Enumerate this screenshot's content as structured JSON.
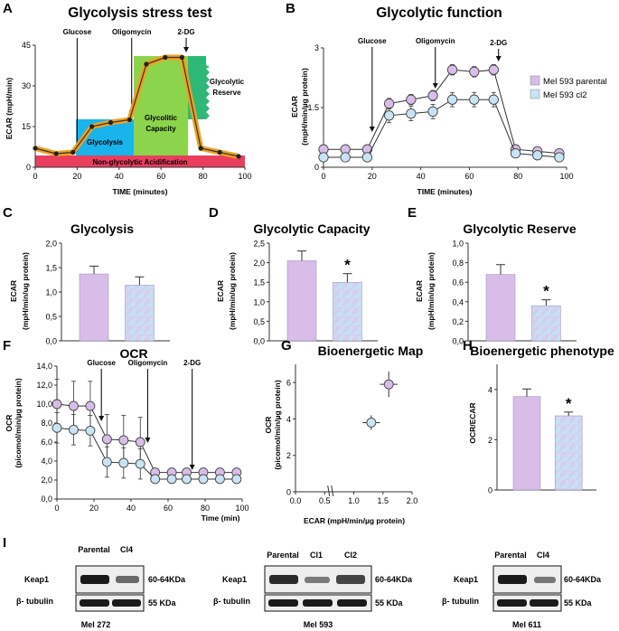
{
  "colors": {
    "parental": "#d8bde8",
    "cl2": "#c8e4f4",
    "parental_stroke": "#555555",
    "orange": "#f0a020",
    "cyan": "#19b4ec",
    "green": "#8cd44c",
    "dark_green": "#2db878",
    "red": "#ea3e5e"
  },
  "panels": {
    "A": {
      "label": "A",
      "title": "Glycolysis stress test",
      "ylabel": "ECAR (mpH/min)",
      "xlabel": "TIME (minutes)",
      "injections": [
        "Glucose",
        "Oligomycin",
        "2-DG"
      ],
      "regions": {
        "glycolysis": "Glycolysis",
        "capacity": "Glycolitic Capacity",
        "reserve": "Glycolytic Reserve",
        "non_glycolytic": "Non-glycolytic Acidification"
      }
    },
    "B": {
      "label": "B",
      "title": "Glycolytic function",
      "ylabel_line1": "ECAR",
      "ylabel_line2": "(mpH/min/µg protein)",
      "xlabel": "TIME (minutes)",
      "injections": [
        "Glucose",
        "Oligomycin",
        "2-DG"
      ],
      "legend": [
        "Mel 593 parental",
        "Mel 593 cl2"
      ]
    },
    "C": {
      "label": "C",
      "title": "Glycolysis",
      "ylabel_line1": "ECAR",
      "ylabel_line2": "(mpH/min/ug protein)"
    },
    "D": {
      "label": "D",
      "title": "Glycolytic Capacity",
      "ylabel_line1": "ECAR",
      "ylabel_line2": "(mpH/min/ug protein)",
      "significance": "*"
    },
    "E": {
      "label": "E",
      "title": "Glycolytic Reserve",
      "ylabel_line1": "ECAR",
      "ylabel_line2": "(mpH/min/ug protein)",
      "significance": "*"
    },
    "F": {
      "label": "F",
      "title": "OCR",
      "ylabel_line1": "OCR",
      "ylabel_line2": "(picomol/min/µg protein)",
      "xlabel": "Time (min)",
      "injections": [
        "Glucose",
        "Oligomycin",
        "2-DG"
      ]
    },
    "G": {
      "label": "G",
      "title": "Bioenergetic Map",
      "ylabel_line1": "OCR",
      "ylabel_line2": "(picomol/min/µg protein)",
      "xlabel": "ECAR (mpH/min/µg protein)"
    },
    "H": {
      "label": "H",
      "title": "Bioenergetic phenotype",
      "ylabel": "OCR/ECAR",
      "significance": "*"
    },
    "I": {
      "label": "I",
      "row_labels": [
        "Keap1",
        "β- tubulin"
      ],
      "size_labels": [
        "60-64KDa",
        "55 KDa"
      ],
      "blots": [
        {
          "cell_line": "Mel 272",
          "lanes": [
            "Parental",
            "Cl4"
          ]
        },
        {
          "cell_line": "Mel 593",
          "lanes": [
            "Parental",
            "Cl1",
            "Cl2"
          ]
        },
        {
          "cell_line": "Mel 611",
          "lanes": [
            "Parental",
            "Cl4"
          ]
        }
      ]
    }
  },
  "chart_data": [
    {
      "id": "A",
      "type": "line",
      "title": "Glycolysis stress test",
      "xlabel": "TIME (minutes)",
      "ylabel": "ECAR (mpH/min)",
      "xlim": [
        0,
        100
      ],
      "ylim": [
        0,
        45
      ],
      "xticks": [
        0,
        20,
        40,
        60,
        80,
        100
      ],
      "yticks": [
        0,
        15,
        30,
        45
      ],
      "x": [
        0,
        10,
        18,
        27,
        36,
        45,
        53,
        62,
        70,
        79,
        88,
        97
      ],
      "series": [
        {
          "name": "ECAR",
          "values": [
            7,
            5,
            5.5,
            15,
            16.5,
            17.5,
            38,
            40.5,
            40.5,
            7,
            5.5,
            4
          ]
        }
      ],
      "injection_times": [
        20,
        46,
        72
      ]
    },
    {
      "id": "B",
      "type": "line",
      "title": "Glycolytic function",
      "xlabel": "TIME (minutes)",
      "ylabel": "ECAR (mpH/min/µg protein)",
      "xlim": [
        0,
        100
      ],
      "ylim": [
        0,
        3.0
      ],
      "xticks": [
        0,
        20,
        40,
        60,
        80,
        100
      ],
      "yticks": [
        0,
        1.5,
        3.0
      ],
      "x": [
        0,
        9,
        18,
        27,
        36,
        45,
        53,
        62,
        70,
        79,
        88,
        97
      ],
      "series": [
        {
          "name": "Mel 593 parental",
          "values": [
            0.45,
            0.45,
            0.45,
            1.6,
            1.7,
            1.8,
            2.45,
            2.4,
            2.45,
            0.45,
            0.4,
            0.35
          ]
        },
        {
          "name": "Mel 593 cl2",
          "values": [
            0.25,
            0.25,
            0.25,
            1.3,
            1.35,
            1.4,
            1.7,
            1.7,
            1.7,
            0.35,
            0.3,
            0.25
          ]
        }
      ],
      "injection_times": [
        20,
        46,
        72
      ]
    },
    {
      "id": "C",
      "type": "bar",
      "title": "Glycolysis",
      "ylabel": "ECAR (mpH/min/ug protein)",
      "categories": [
        "Mel 593 parental",
        "Mel 593 cl2"
      ],
      "values": [
        1.37,
        1.14
      ],
      "errors": [
        0.16,
        0.17
      ],
      "ylim": [
        0,
        2.0
      ],
      "yticks": [
        "0,0",
        "0,5",
        "1,0",
        "1,5",
        "2,0"
      ]
    },
    {
      "id": "D",
      "type": "bar",
      "title": "Glycolytic Capacity",
      "ylabel": "ECAR (mpH/min/ug protein)",
      "categories": [
        "Mel 593 parental",
        "Mel 593 cl2"
      ],
      "values": [
        2.05,
        1.5
      ],
      "errors": [
        0.25,
        0.22
      ],
      "ylim": [
        0,
        2.5
      ],
      "yticks": [
        "0,0",
        "0,5",
        "1,0",
        "1,5",
        "2,0",
        "2,5"
      ]
    },
    {
      "id": "E",
      "type": "bar",
      "title": "Glycolytic Reserve",
      "ylabel": "ECAR (mpH/min/ug protein)",
      "categories": [
        "Mel 593 parental",
        "Mel 593 cl2"
      ],
      "values": [
        0.68,
        0.36
      ],
      "errors": [
        0.1,
        0.06
      ],
      "ylim": [
        0,
        1.0
      ],
      "yticks": [
        "0,0",
        "0,2",
        "0,4",
        "0,6",
        "0,8",
        "1,0"
      ]
    },
    {
      "id": "F",
      "type": "line",
      "title": "OCR",
      "xlabel": "Time (min)",
      "ylabel": "OCR (picomol/min/µg protein)",
      "xlim": [
        0,
        100
      ],
      "ylim": [
        0,
        14
      ],
      "xticks": [
        0,
        20,
        40,
        60,
        80,
        100
      ],
      "yticks": [
        "0,0",
        "2,0",
        "4,0",
        "6,0",
        "8,0",
        "10,0",
        "12,0",
        "14,0"
      ],
      "x": [
        0,
        9,
        18,
        27,
        36,
        45,
        53,
        62,
        70,
        79,
        88,
        97
      ],
      "series": [
        {
          "name": "Mel 593 parental",
          "values": [
            10,
            9.8,
            9.8,
            6.3,
            6.2,
            6.0,
            2.8,
            2.8,
            2.8,
            2.8,
            2.8,
            2.8
          ]
        },
        {
          "name": "Mel 593 cl2",
          "values": [
            7.5,
            7.3,
            7.2,
            3.9,
            3.8,
            3.7,
            2.1,
            2.1,
            2.1,
            2.1,
            2.1,
            2.1
          ]
        }
      ],
      "injection_times": [
        24,
        49,
        73
      ]
    },
    {
      "id": "G",
      "type": "scatter",
      "title": "Bioenergetic Map",
      "xlabel": "ECAR (mpH/min/µg protein)",
      "ylabel": "OCR (picomol/min/µg protein)",
      "xlim": [
        0,
        2.0
      ],
      "ylim": [
        0,
        7
      ],
      "xticks": [
        "0.0",
        "0.5",
        "1.0",
        "1.5",
        "2.0"
      ],
      "yticks": [
        "0",
        "2",
        "4",
        "6"
      ],
      "series": [
        {
          "name": "Mel 593 parental",
          "x": 1.6,
          "y": 5.9,
          "xerr": 0.15,
          "yerr": 0.7
        },
        {
          "name": "Mel 593 cl2",
          "x": 1.3,
          "y": 3.8,
          "xerr": 0.15,
          "yerr": 0.4
        }
      ]
    },
    {
      "id": "H",
      "type": "bar",
      "title": "Bioenergetic phenotype",
      "ylabel": "OCR/ECAR",
      "categories": [
        "Mel 593 parental",
        "Mel 593 cl2"
      ],
      "values": [
        3.72,
        2.95
      ],
      "errors": [
        0.3,
        0.15
      ],
      "ylim": [
        0,
        5
      ],
      "yticks": [
        "0",
        "2",
        "4"
      ]
    }
  ]
}
